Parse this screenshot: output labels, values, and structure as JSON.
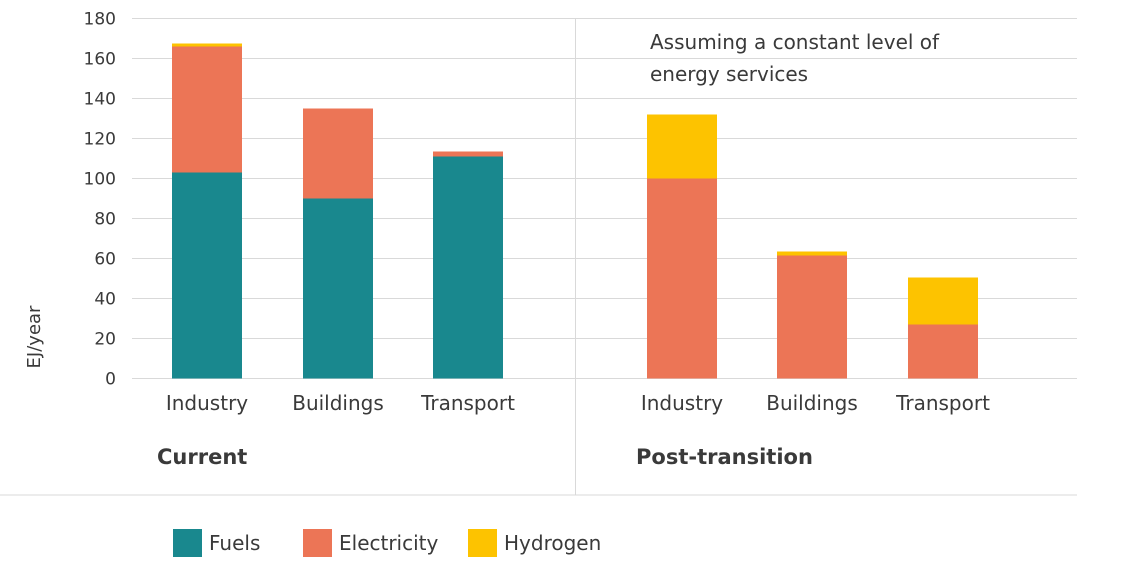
{
  "chart_data": {
    "type": "bar",
    "stacked": true,
    "ylabel": "EJ/year",
    "ylim": [
      0,
      180
    ],
    "yticks": [
      0,
      20,
      40,
      60,
      80,
      100,
      120,
      140,
      160,
      180
    ],
    "grid": true,
    "legend_position": "bottom",
    "annotation": [
      "Assuming a constant level of",
      "energy services"
    ],
    "groups": [
      {
        "label": "Current",
        "categories": [
          "Industry",
          "Buildings",
          "Transport"
        ],
        "series": [
          {
            "name": "Fuels",
            "values": [
              103,
              90,
              111
            ]
          },
          {
            "name": "Electricity",
            "values": [
              63,
              45,
              2.5
            ]
          },
          {
            "name": "Hydrogen",
            "values": [
              1.5,
              0,
              0
            ]
          }
        ]
      },
      {
        "label": "Post-transition",
        "categories": [
          "Industry",
          "Buildings",
          "Transport"
        ],
        "series": [
          {
            "name": "Fuels",
            "values": [
              0,
              0,
              0
            ]
          },
          {
            "name": "Electricity",
            "values": [
              100,
              61.5,
              27
            ]
          },
          {
            "name": "Hydrogen",
            "values": [
              32,
              2,
              23.5
            ]
          }
        ]
      }
    ],
    "legend": [
      {
        "name": "Fuels",
        "color": "#19888e"
      },
      {
        "name": "Electricity",
        "color": "#ec7556"
      },
      {
        "name": "Hydrogen",
        "color": "#fdc300"
      }
    ],
    "colors": {
      "Fuels": "#19888e",
      "Electricity": "#ec7556",
      "Hydrogen": "#fdc300",
      "grid": "#d9d9d9",
      "text": "#3a3a3a"
    }
  }
}
